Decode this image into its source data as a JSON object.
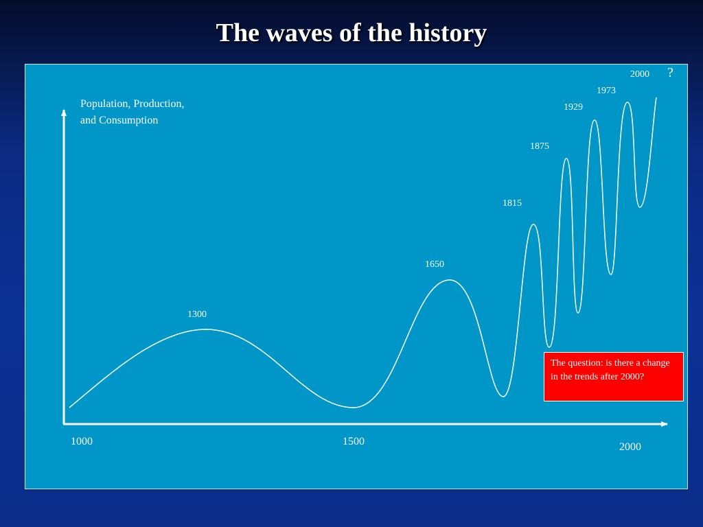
{
  "slide": {
    "title": "The waves of the history",
    "y_axis_label": "Population, Production, and Consumption",
    "question_mark": "?",
    "callout": "The question: is there a change  in the trends after 2000?"
  },
  "chart_data": {
    "type": "line",
    "ylabel": "Population, Production, and Consumption",
    "x_tick_labels": [
      "1000",
      "1500",
      "2000"
    ],
    "peak_labels": [
      "1300",
      "1650",
      "1815",
      "1875",
      "1929",
      "1973",
      "2000"
    ],
    "note": "Illustrative wave curve with no numeric y-axis; peaks labeled by year, amplitude and frequency increasing over time."
  },
  "colors": {
    "panel": "#0096c8",
    "line": "#ffffff",
    "callout": "#ff0000",
    "title": "#ffffff"
  }
}
